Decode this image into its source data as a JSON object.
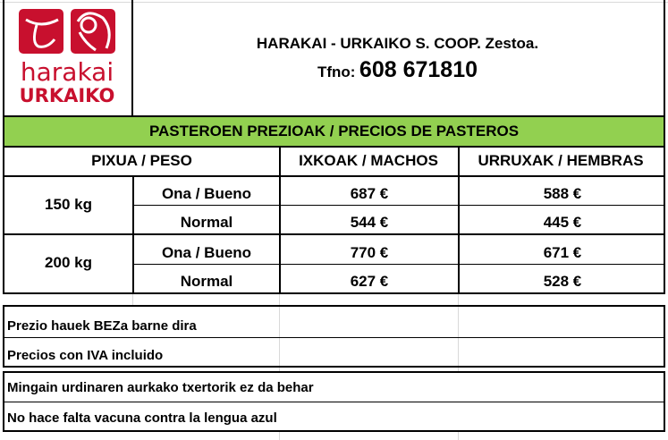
{
  "header": {
    "logo_text_top": "harakai",
    "logo_text_bottom": "URKAIKO",
    "company": "HARAKAI - URKAIKO S. COOP. Zestoa.",
    "phone_label": "Tfno:",
    "phone": "608 671810"
  },
  "colors": {
    "banner": "#92d050",
    "logo": "#c8102e"
  },
  "table": {
    "title": "PASTEROEN PREZIOAK / PRECIOS DE PASTEROS",
    "headers": [
      "PIXUA / PESO",
      "IXKOAK / MACHOS",
      "URRUXAK / HEMBRAS"
    ],
    "groups": [
      {
        "weight": "150 kg",
        "rows": [
          {
            "quality": "Ona / Bueno",
            "males": "687 €",
            "females": "588 €"
          },
          {
            "quality": "Normal",
            "males": "544 €",
            "females": "445 €"
          }
        ]
      },
      {
        "weight": "200 kg",
        "rows": [
          {
            "quality": "Ona / Bueno",
            "males": "770 €",
            "females": "671 €"
          },
          {
            "quality": "Normal",
            "males": "627 €",
            "females": "528 €"
          }
        ]
      }
    ]
  },
  "notes": [
    "Prezio hauek BEZa barne dira",
    "Precios con IVA incluido",
    "Mingain urdinaren aurkako txertorik ez da behar",
    "No hace falta vacuna contra la lengua azul"
  ]
}
